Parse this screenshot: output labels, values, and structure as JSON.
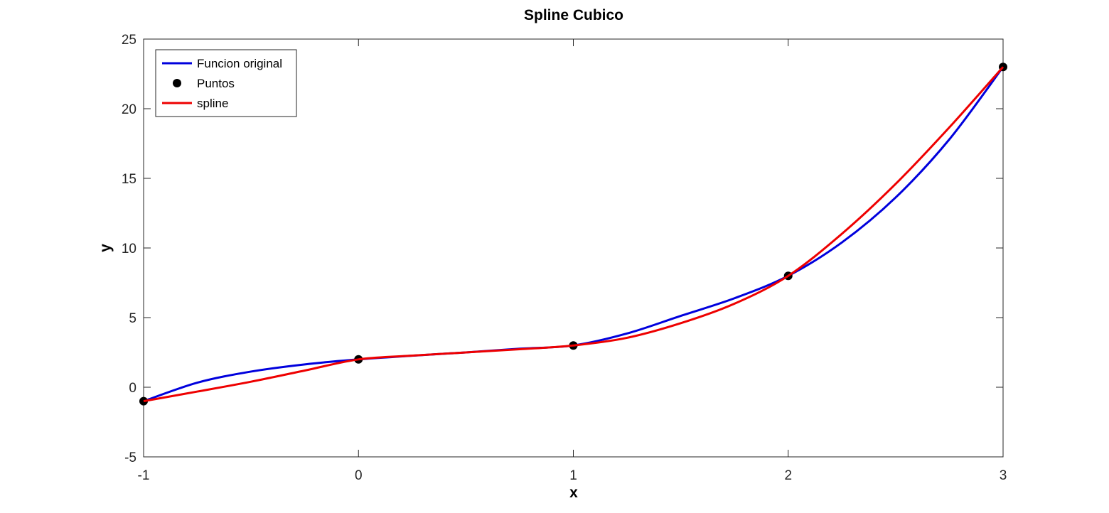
{
  "chart_data": {
    "type": "line",
    "title": "Spline Cubico",
    "xlabel": "x",
    "ylabel": "y",
    "xlim": [
      -1,
      3
    ],
    "ylim": [
      -5,
      25
    ],
    "xticks": [
      -1,
      0,
      1,
      2,
      3
    ],
    "yticks": [
      -5,
      0,
      5,
      10,
      15,
      20,
      25
    ],
    "grid": false,
    "legend": {
      "placement": "top-left",
      "entries": [
        "Funcion original",
        "Puntos",
        "spline"
      ]
    },
    "series": [
      {
        "name": "Funcion original",
        "kind": "line",
        "color": "#0000dd",
        "x": [
          -1,
          -0.75,
          -0.5,
          -0.25,
          0,
          0.25,
          0.5,
          0.75,
          1,
          1.25,
          1.5,
          1.75,
          2,
          2.25,
          2.5,
          2.75,
          3
        ],
        "y": [
          -1,
          0.328,
          1.125,
          1.641,
          2,
          2.266,
          2.5,
          2.766,
          3,
          3.859,
          5.125,
          6.391,
          8,
          10.4,
          13.625,
          17.8,
          23
        ]
      },
      {
        "name": "Puntos",
        "kind": "scatter",
        "color": "#000000",
        "x": [
          -1,
          0,
          1,
          2,
          3
        ],
        "y": [
          -1,
          2,
          3,
          8,
          23
        ]
      },
      {
        "name": "spline",
        "kind": "line",
        "color": "#ee0000",
        "x": [
          -1,
          -0.75,
          -0.5,
          -0.25,
          0,
          0.25,
          0.5,
          0.75,
          1,
          1.25,
          1.5,
          1.75,
          2,
          2.25,
          2.5,
          2.75,
          3
        ],
        "y": [
          -1,
          -0.31,
          0.4,
          1.2,
          2,
          2.27,
          2.5,
          2.73,
          3,
          3.55,
          4.6,
          6.0,
          8,
          11.02,
          14.6,
          18.66,
          23
        ]
      }
    ]
  }
}
